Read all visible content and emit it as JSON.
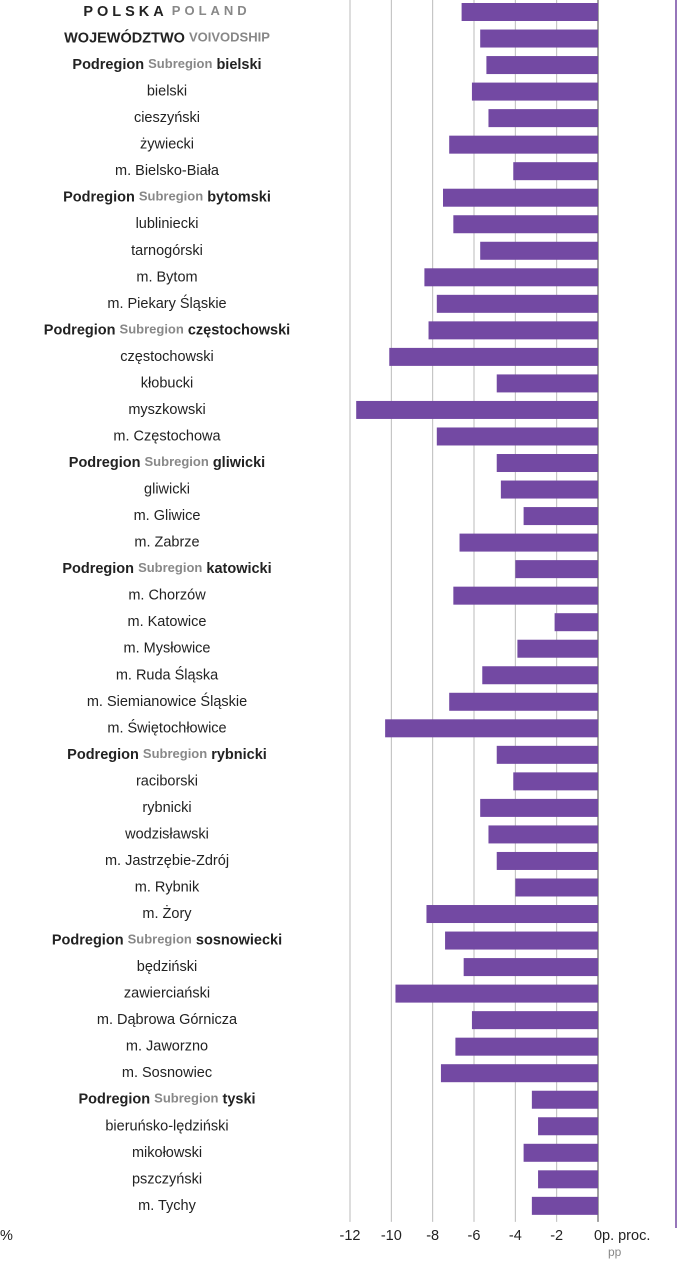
{
  "chart_data": {
    "type": "barh",
    "categories": [
      [
        "POLSKA",
        "POLAND"
      ],
      [
        "WOJEWÓDZTWO",
        "VOIVODSHIP"
      ],
      [
        "Podregion",
        "Subregion",
        "bielski"
      ],
      [
        "bielski"
      ],
      [
        "cieszyński"
      ],
      [
        "żywiecki"
      ],
      [
        "m. Bielsko-Biała"
      ],
      [
        "Podregion",
        "Subregion",
        "bytomski"
      ],
      [
        "lubliniecki"
      ],
      [
        "tarnogórski"
      ],
      [
        "m. Bytom"
      ],
      [
        "m. Piekary Śląskie"
      ],
      [
        "Podregion",
        "Subregion",
        "częstochowski"
      ],
      [
        "częstochowski"
      ],
      [
        "kłobucki"
      ],
      [
        "myszkowski"
      ],
      [
        "m. Częstochowa"
      ],
      [
        "Podregion",
        "Subregion",
        "gliwicki"
      ],
      [
        "gliwicki"
      ],
      [
        "m. Gliwice"
      ],
      [
        "m. Zabrze"
      ],
      [
        "Podregion",
        "Subregion",
        "katowicki"
      ],
      [
        "m. Chorzów"
      ],
      [
        "m. Katowice"
      ],
      [
        "m. Mysłowice"
      ],
      [
        "m. Ruda Śląska"
      ],
      [
        "m. Siemianowice Śląskie"
      ],
      [
        "m. Świętochłowice"
      ],
      [
        "Podregion",
        "Subregion",
        "rybnicki"
      ],
      [
        "raciborski"
      ],
      [
        "rybnicki"
      ],
      [
        "wodzisławski"
      ],
      [
        "m. Jastrzębie-Zdrój"
      ],
      [
        "m. Rybnik"
      ],
      [
        "m. Żory"
      ],
      [
        "Podregion",
        "Subregion",
        "sosnowiecki"
      ],
      [
        "będziński"
      ],
      [
        "zawierciański"
      ],
      [
        "m. Dąbrowa Górnicza"
      ],
      [
        "m. Jaworzno"
      ],
      [
        "m. Sosnowiec"
      ],
      [
        "Podregion",
        "Subregion",
        "tyski"
      ],
      [
        "bieruńsko-lędziński"
      ],
      [
        "mikołowski"
      ],
      [
        "pszczyński"
      ],
      [
        "m. Tychy"
      ]
    ],
    "values": [
      -6.6,
      -5.7,
      -5.4,
      -6.1,
      -5.3,
      -7.2,
      -4.1,
      -7.5,
      -7.0,
      -5.7,
      -8.4,
      -7.8,
      -8.2,
      -10.1,
      -4.9,
      -11.7,
      -7.8,
      -4.9,
      -4.7,
      -3.6,
      -6.7,
      -4.0,
      -7.0,
      -2.1,
      -3.9,
      -5.6,
      -7.2,
      -10.3,
      -4.9,
      -4.1,
      -5.7,
      -5.3,
      -4.9,
      -4.0,
      -8.3,
      -7.4,
      -6.5,
      -9.8,
      -6.1,
      -6.9,
      -7.6,
      -3.2,
      -2.9,
      -3.6,
      -2.9,
      -3.2
    ],
    "color": "#7349a3",
    "xlim": [
      -12,
      0
    ],
    "xticks": [
      -12,
      -10,
      -8,
      -6,
      -4,
      -2,
      0
    ],
    "grid": true,
    "xlabel": "p. proc.",
    "xlabel_en": "pp",
    "left_label": "%"
  }
}
